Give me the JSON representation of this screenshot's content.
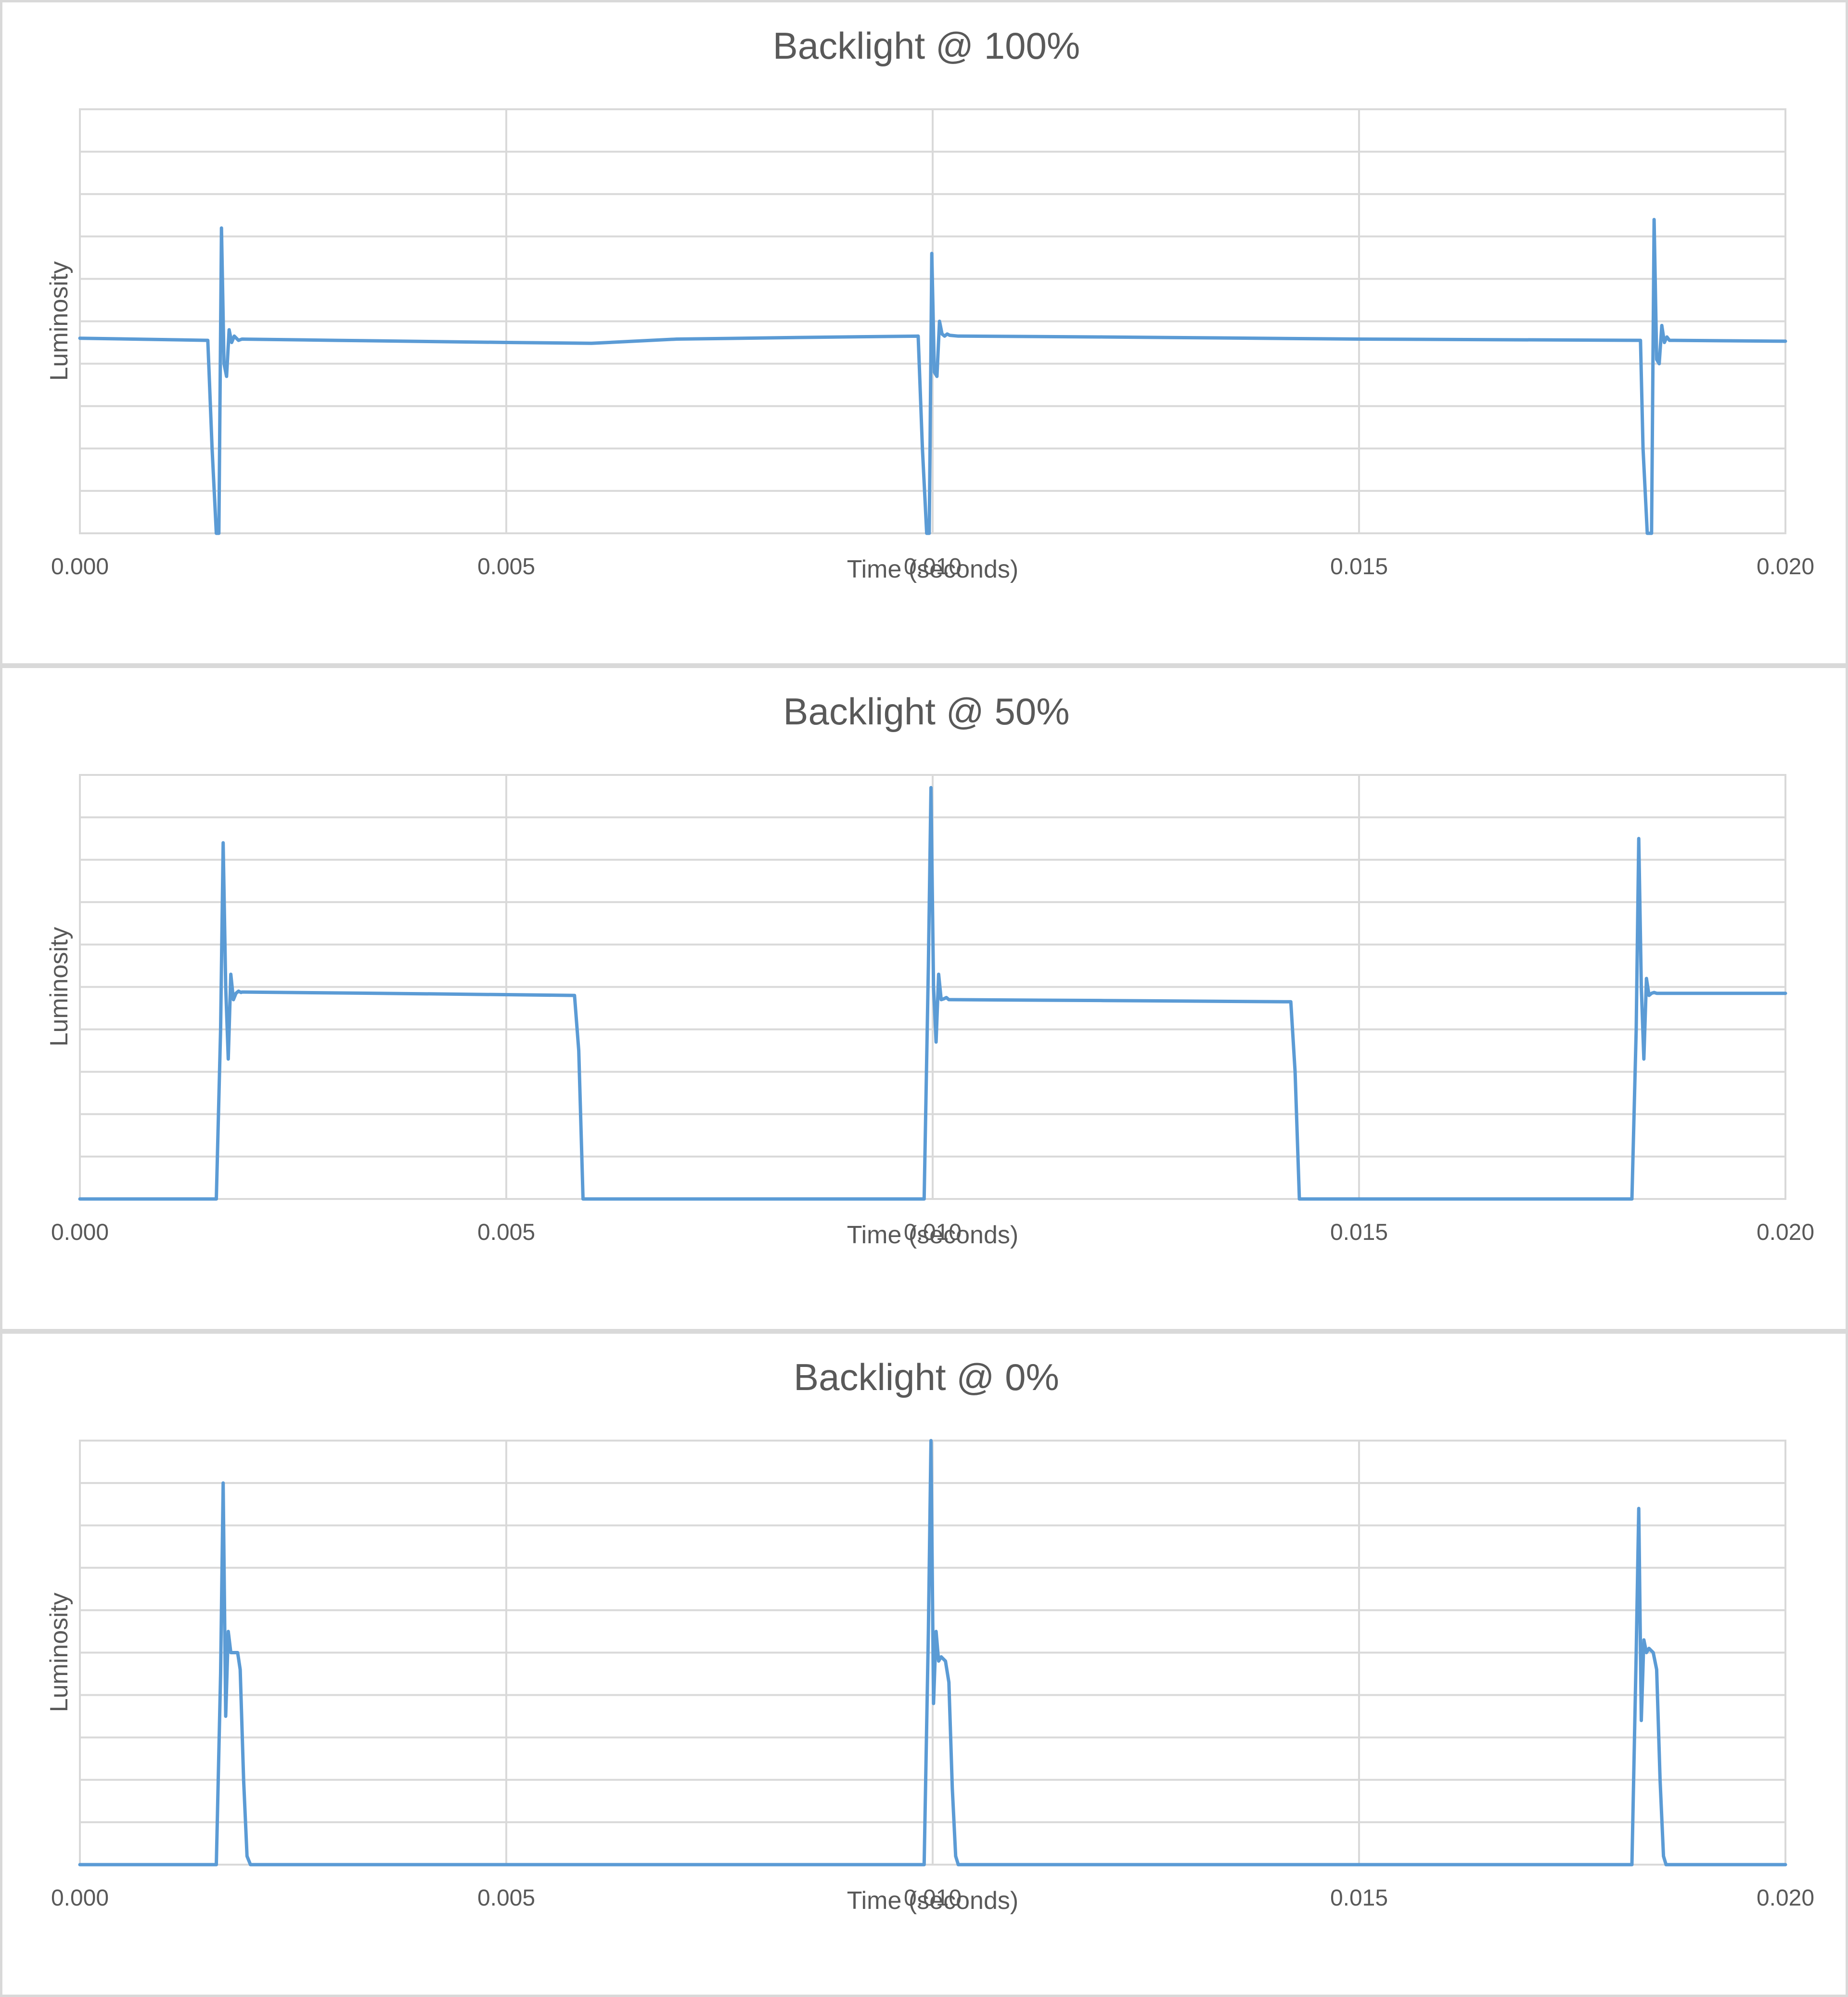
{
  "chart_data": [
    {
      "type": "line",
      "title": "Backlight @ 100%",
      "xlabel": "Time (seconds)",
      "ylabel": "Luminosity",
      "x_ticks": [
        "0.000",
        "0.005",
        "0.010",
        "0.015",
        "0.020"
      ],
      "xlim": [
        0,
        0.02
      ],
      "ylim": [
        0,
        1
      ],
      "grid": true,
      "y_gridlines": 10,
      "line_color": "#5b9bd5",
      "series": [
        {
          "x": [
            0,
            0.0015,
            0.00155,
            0.0016,
            0.00163,
            0.00166,
            0.00169,
            0.00172,
            0.00175,
            0.00178,
            0.00181,
            0.00186,
            0.0019,
            0.003,
            0.005,
            0.006,
            0.0065,
            0.007,
            0.0085,
            0.00983,
            0.00988,
            0.00993,
            0.00996,
            0.00999,
            0.01002,
            0.01005,
            0.01008,
            0.01011,
            0.01014,
            0.01017,
            0.0102,
            0.0103,
            0.012,
            0.015,
            0.0183,
            0.01833,
            0.01838,
            0.01843,
            0.01846,
            0.01849,
            0.01852,
            0.01855,
            0.01858,
            0.01861,
            0.01864,
            0.01868,
            0.0187,
            0.02
          ],
          "y": [
            0.46,
            0.455,
            0.2,
            0.0,
            0.0,
            0.72,
            0.4,
            0.37,
            0.48,
            0.45,
            0.465,
            0.455,
            0.458,
            0.455,
            0.45,
            0.448,
            0.453,
            0.458,
            0.462,
            0.465,
            0.2,
            0.0,
            0.0,
            0.66,
            0.38,
            0.37,
            0.5,
            0.47,
            0.465,
            0.47,
            0.467,
            0.465,
            0.463,
            0.458,
            0.455,
            0.2,
            0.0,
            0.0,
            0.74,
            0.41,
            0.4,
            0.49,
            0.45,
            0.463,
            0.455,
            0.455,
            0.455,
            0.453
          ]
        }
      ]
    },
    {
      "type": "line",
      "title": "Backlight @ 50%",
      "xlabel": "Time (seconds)",
      "ylabel": "Luminosity",
      "x_ticks": [
        "0.000",
        "0.005",
        "0.010",
        "0.015",
        "0.020"
      ],
      "xlim": [
        0,
        0.02
      ],
      "ylim": [
        0,
        1
      ],
      "grid": true,
      "y_gridlines": 10,
      "line_color": "#5b9bd5",
      "series": [
        {
          "x": [
            0,
            0.0016,
            0.00165,
            0.00168,
            0.00171,
            0.00174,
            0.00177,
            0.0018,
            0.00183,
            0.00186,
            0.00189,
            0.0019,
            0.0035,
            0.0058,
            0.00585,
            0.0059,
            0.0099,
            0.00995,
            0.00998,
            0.01001,
            0.01004,
            0.01007,
            0.0101,
            0.01013,
            0.01016,
            0.01019,
            0.0102,
            0.012,
            0.0142,
            0.01425,
            0.0143,
            0.0182,
            0.01825,
            0.01828,
            0.01831,
            0.01834,
            0.01837,
            0.0184,
            0.01843,
            0.01846,
            0.01849,
            0.0185,
            0.02
          ],
          "y": [
            0.0,
            0.0,
            0.4,
            0.84,
            0.5,
            0.33,
            0.53,
            0.47,
            0.485,
            0.49,
            0.487,
            0.488,
            0.485,
            0.48,
            0.35,
            0.0,
            0.0,
            0.55,
            0.97,
            0.5,
            0.37,
            0.53,
            0.47,
            0.472,
            0.475,
            0.47,
            0.47,
            0.468,
            0.465,
            0.3,
            0.0,
            0.0,
            0.4,
            0.85,
            0.5,
            0.33,
            0.52,
            0.48,
            0.485,
            0.487,
            0.485,
            0.485,
            0.485
          ]
        }
      ]
    },
    {
      "type": "line",
      "title": "Backlight @ 0%",
      "xlabel": "Time (seconds)",
      "ylabel": "Luminosity",
      "x_ticks": [
        "0.000",
        "0.005",
        "0.010",
        "0.015",
        "0.020"
      ],
      "xlim": [
        0,
        0.02
      ],
      "ylim": [
        0,
        1
      ],
      "grid": true,
      "y_gridlines": 10,
      "line_color": "#5b9bd5",
      "series": [
        {
          "x": [
            0,
            0.0016,
            0.00165,
            0.00168,
            0.00171,
            0.00174,
            0.00177,
            0.0018,
            0.00185,
            0.00188,
            0.00192,
            0.00196,
            0.002,
            0.0099,
            0.00995,
            0.00998,
            0.01001,
            0.01004,
            0.01007,
            0.0101,
            0.01015,
            0.01019,
            0.01023,
            0.01027,
            0.0103,
            0.0182,
            0.01825,
            0.01828,
            0.01831,
            0.01834,
            0.01837,
            0.0184,
            0.01845,
            0.01849,
            0.01853,
            0.01857,
            0.0186,
            0.02
          ],
          "y": [
            0.0,
            0.0,
            0.45,
            0.9,
            0.35,
            0.55,
            0.5,
            0.5,
            0.5,
            0.46,
            0.2,
            0.02,
            0.0,
            0.0,
            0.55,
            1.0,
            0.38,
            0.55,
            0.48,
            0.49,
            0.48,
            0.43,
            0.18,
            0.02,
            0.0,
            0.0,
            0.5,
            0.84,
            0.34,
            0.53,
            0.5,
            0.51,
            0.5,
            0.46,
            0.2,
            0.02,
            0.0,
            0.0
          ]
        }
      ]
    }
  ]
}
